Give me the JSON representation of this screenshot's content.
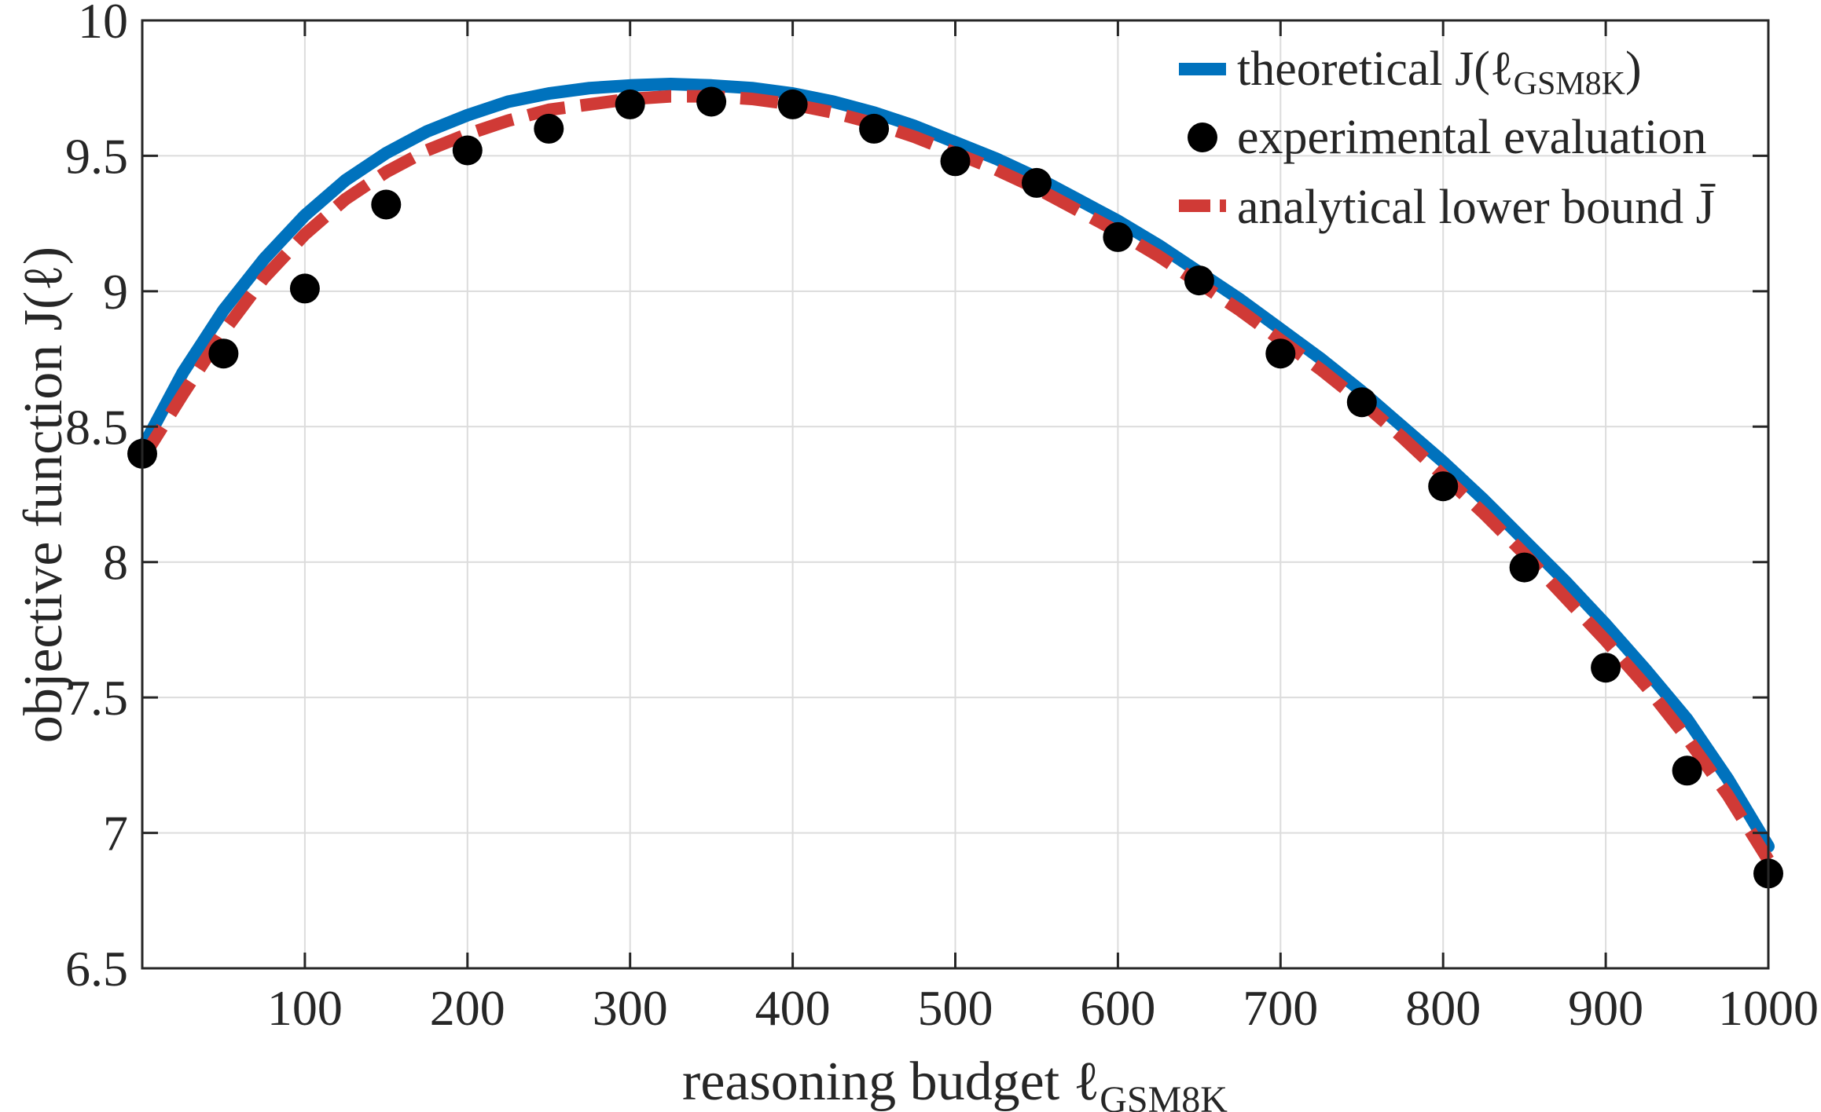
{
  "chart_data": {
    "type": "line",
    "title": "",
    "xlabel": "reasoning budget ℓ",
    "xlabel_sub": "GSM8K",
    "ylabel": "objective function J(ℓ)",
    "xlim": [
      0,
      1000
    ],
    "ylim": [
      6.5,
      10
    ],
    "xticks": [
      100,
      200,
      300,
      400,
      500,
      600,
      700,
      800,
      900,
      1000
    ],
    "yticks": [
      6.5,
      7,
      7.5,
      8,
      8.5,
      9,
      9.5,
      10
    ],
    "xtick_labels": [
      "100",
      "200",
      "300",
      "400",
      "500",
      "600",
      "700",
      "800",
      "900",
      "1000"
    ],
    "ytick_labels": [
      "6.5",
      "7",
      "7.5",
      "8",
      "8.5",
      "9",
      "9.5",
      "10"
    ],
    "grid": true,
    "legend_position": "top-right",
    "legend": [
      {
        "text": "theoretical J(ℓ",
        "sub": "GSM8K",
        "tail": ")"
      },
      {
        "text": "experimental evaluation",
        "sub": "",
        "tail": ""
      },
      {
        "text": "analytical lower bound J̄",
        "sub": "",
        "tail": ""
      }
    ],
    "series": [
      {
        "name": "theoretical J(ℓ_GSM8K)",
        "style": "solid",
        "color": "#0072BD",
        "x": [
          0,
          25,
          50,
          75,
          100,
          125,
          150,
          175,
          200,
          225,
          250,
          275,
          300,
          325,
          350,
          375,
          400,
          425,
          450,
          475,
          500,
          525,
          550,
          575,
          600,
          625,
          650,
          675,
          700,
          725,
          750,
          775,
          800,
          825,
          850,
          875,
          900,
          925,
          950,
          975,
          1000
        ],
        "y": [
          8.42,
          8.7,
          8.93,
          9.12,
          9.28,
          9.41,
          9.51,
          9.59,
          9.65,
          9.7,
          9.73,
          9.75,
          9.76,
          9.765,
          9.76,
          9.75,
          9.73,
          9.7,
          9.66,
          9.61,
          9.55,
          9.49,
          9.42,
          9.34,
          9.26,
          9.17,
          9.07,
          8.97,
          8.86,
          8.75,
          8.63,
          8.5,
          8.37,
          8.23,
          8.08,
          7.93,
          7.77,
          7.6,
          7.42,
          7.2,
          6.95
        ]
      },
      {
        "name": "experimental evaluation",
        "style": "markers",
        "color": "#000000",
        "x": [
          0,
          50,
          100,
          150,
          200,
          250,
          300,
          350,
          400,
          450,
          500,
          550,
          600,
          650,
          700,
          750,
          800,
          850,
          900,
          950,
          1000
        ],
        "y": [
          8.4,
          8.77,
          9.01,
          9.32,
          9.52,
          9.6,
          9.69,
          9.7,
          9.69,
          9.6,
          9.48,
          9.4,
          9.2,
          9.04,
          8.77,
          8.59,
          8.28,
          7.98,
          7.61,
          7.23,
          6.85
        ]
      },
      {
        "name": "analytical lower bound J̄",
        "style": "dashed",
        "color": "#D03A36",
        "x": [
          0,
          25,
          50,
          75,
          100,
          125,
          150,
          175,
          200,
          225,
          250,
          275,
          300,
          325,
          350,
          375,
          400,
          425,
          450,
          475,
          500,
          525,
          550,
          575,
          600,
          625,
          650,
          675,
          700,
          725,
          750,
          775,
          800,
          825,
          850,
          875,
          900,
          925,
          950,
          975,
          1000
        ],
        "y": [
          8.38,
          8.62,
          8.85,
          9.05,
          9.21,
          9.34,
          9.44,
          9.52,
          9.58,
          9.63,
          9.67,
          9.69,
          9.71,
          9.72,
          9.72,
          9.71,
          9.69,
          9.66,
          9.62,
          9.57,
          9.51,
          9.45,
          9.38,
          9.3,
          9.22,
          9.13,
          9.03,
          8.93,
          8.82,
          8.71,
          8.59,
          8.46,
          8.32,
          8.18,
          8.03,
          7.87,
          7.71,
          7.54,
          7.35,
          7.14,
          6.9
        ]
      }
    ]
  }
}
